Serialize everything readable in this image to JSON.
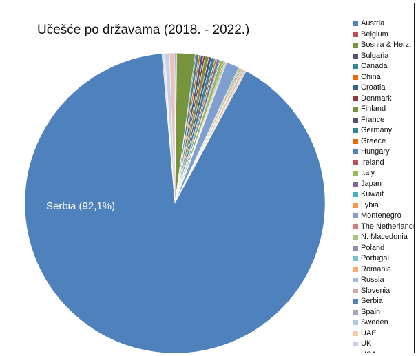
{
  "chart_data": {
    "type": "pie",
    "title": "Učešće po državama (2018. - 2022.)",
    "legend_position": "right",
    "highlight_label": "Serbia (92,1%)",
    "slices": [
      {
        "name": "Austria",
        "value": 0.1,
        "color": "#4f81bd"
      },
      {
        "name": "Belgium",
        "value": 0.1,
        "color": "#c0504d"
      },
      {
        "name": "Bosnia & Herz.",
        "value": 2.0,
        "color": "#77933c"
      },
      {
        "name": "Bulgaria",
        "value": 0.1,
        "color": "#604a7b"
      },
      {
        "name": "Canada",
        "value": 0.3,
        "color": "#31859c"
      },
      {
        "name": "China",
        "value": 0.2,
        "color": "#e46c0a"
      },
      {
        "name": "Croatia",
        "value": 0.3,
        "color": "#376092"
      },
      {
        "name": "Denmark",
        "value": 0.2,
        "color": "#953735"
      },
      {
        "name": "Finland",
        "value": 0.4,
        "color": "#76923c"
      },
      {
        "name": "France",
        "value": 0.3,
        "color": "#5f497a"
      },
      {
        "name": "Germany",
        "value": 0.4,
        "color": "#31849b"
      },
      {
        "name": "Greece",
        "value": 0.2,
        "color": "#e36c09"
      },
      {
        "name": "Hungary",
        "value": 0.3,
        "color": "#4f81bd"
      },
      {
        "name": "Ireland",
        "value": 0.1,
        "color": "#c0504d"
      },
      {
        "name": "Italy",
        "value": 0.4,
        "color": "#9bbb59"
      },
      {
        "name": "Japan",
        "value": 0.1,
        "color": "#8064a2"
      },
      {
        "name": "Kuwait",
        "value": 0.1,
        "color": "#4bacc6"
      },
      {
        "name": "Lybia",
        "value": 0.1,
        "color": "#f79646"
      },
      {
        "name": "Montenegro",
        "value": 1.4,
        "color": "#7f9fd0"
      },
      {
        "name": "The Netherlands",
        "value": 0.1,
        "color": "#d07f7d"
      },
      {
        "name": "N. Macedonia",
        "value": 0.2,
        "color": "#aac47d"
      },
      {
        "name": "Poland",
        "value": 0.1,
        "color": "#9c88b8"
      },
      {
        "name": "Portugal",
        "value": 0.1,
        "color": "#76c1d6"
      },
      {
        "name": "Romania",
        "value": 0.2,
        "color": "#f8ab72"
      },
      {
        "name": "Russia",
        "value": 0.1,
        "color": "#a6b9dc"
      },
      {
        "name": "Slovenia",
        "value": 0.1,
        "color": "#d9a5a4"
      },
      {
        "name": "Serbia",
        "value": 92.1,
        "color": "#4f81bd"
      },
      {
        "name": "Spain",
        "value": 0.1,
        "color": "#a6a6b8"
      },
      {
        "name": "Sweden",
        "value": 0.1,
        "color": "#a8cde0"
      },
      {
        "name": "UAE",
        "value": 0.1,
        "color": "#fac8a8"
      },
      {
        "name": "UK",
        "value": 0.5,
        "color": "#c5d1e8"
      },
      {
        "name": "USA",
        "value": 0.6,
        "color": "#e8c1c0"
      }
    ]
  }
}
